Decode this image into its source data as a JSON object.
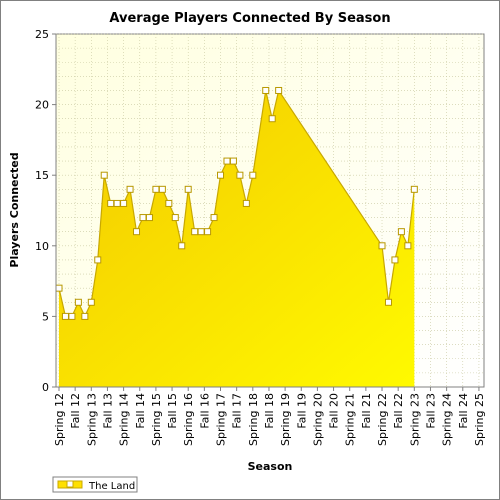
{
  "chart_data": {
    "type": "area",
    "title": "Average Players Connected By Season",
    "xlabel": "Season",
    "ylabel": "Players Connected",
    "ylim": [
      0,
      25
    ],
    "yticks": [
      0,
      5,
      10,
      15,
      20,
      25
    ],
    "grid": true,
    "legend_position": "bottom-left",
    "categories": [
      "Spring 12",
      "Fall 12",
      "Spring 13",
      "Fall 13",
      "Spring 14",
      "Fall 14",
      "Spring 15",
      "Fall 15",
      "Spring 16",
      "Fall 16",
      "Spring 17",
      "Fall 17",
      "Spring 18",
      "Fall 18",
      "Spring 19",
      "Fall 19",
      "Spring 20",
      "Fall 20",
      "Spring 21",
      "Fall 21",
      "Spring 22",
      "Fall 22",
      "Spring 23",
      "Fall 23",
      "Spring 24",
      "Fall 24",
      "Spring 25"
    ],
    "series": [
      {
        "name": "The Land",
        "color": "#FFE000",
        "points": [
          {
            "x": 0.0,
            "y": 7
          },
          {
            "x": 0.4,
            "y": 5
          },
          {
            "x": 0.8,
            "y": 5
          },
          {
            "x": 1.2,
            "y": 6
          },
          {
            "x": 1.6,
            "y": 5
          },
          {
            "x": 2.0,
            "y": 6
          },
          {
            "x": 2.4,
            "y": 9
          },
          {
            "x": 2.8,
            "y": 15
          },
          {
            "x": 3.2,
            "y": 13
          },
          {
            "x": 3.6,
            "y": 13
          },
          {
            "x": 4.0,
            "y": 13
          },
          {
            "x": 4.4,
            "y": 14
          },
          {
            "x": 4.8,
            "y": 11
          },
          {
            "x": 5.2,
            "y": 12
          },
          {
            "x": 5.6,
            "y": 12
          },
          {
            "x": 6.0,
            "y": 14
          },
          {
            "x": 6.4,
            "y": 14
          },
          {
            "x": 6.8,
            "y": 13
          },
          {
            "x": 7.2,
            "y": 12
          },
          {
            "x": 7.6,
            "y": 10
          },
          {
            "x": 8.0,
            "y": 14
          },
          {
            "x": 8.4,
            "y": 11
          },
          {
            "x": 8.8,
            "y": 11
          },
          {
            "x": 9.2,
            "y": 11
          },
          {
            "x": 9.6,
            "y": 12
          },
          {
            "x": 10.0,
            "y": 15
          },
          {
            "x": 10.4,
            "y": 16
          },
          {
            "x": 10.8,
            "y": 16
          },
          {
            "x": 11.2,
            "y": 15
          },
          {
            "x": 11.6,
            "y": 13
          },
          {
            "x": 12.0,
            "y": 15
          },
          {
            "x": 12.8,
            "y": 21
          },
          {
            "x": 13.2,
            "y": 19
          },
          {
            "x": 13.6,
            "y": 21
          },
          {
            "x": 20.0,
            "y": 10
          },
          {
            "x": 20.4,
            "y": 6
          },
          {
            "x": 20.8,
            "y": 9
          },
          {
            "x": 21.2,
            "y": 11
          },
          {
            "x": 21.6,
            "y": 10
          },
          {
            "x": 22.0,
            "y": 14
          }
        ]
      }
    ]
  }
}
